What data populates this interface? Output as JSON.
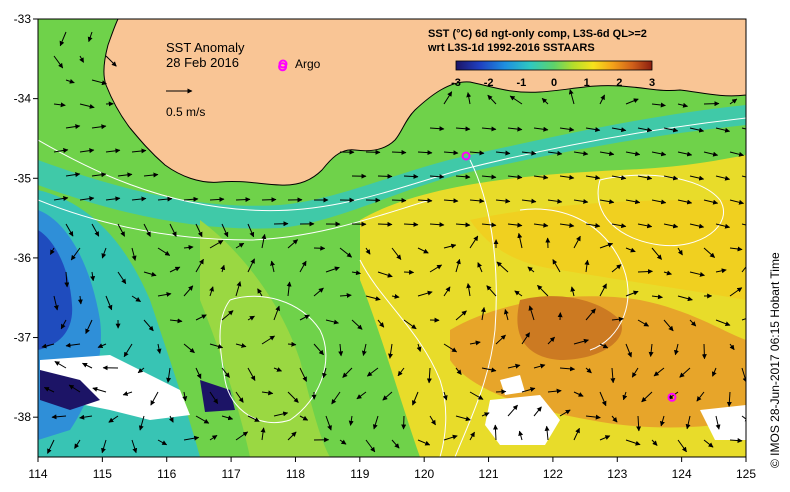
{
  "map": {
    "title": "SST Anomaly",
    "date": "28 Feb 2016",
    "argo_label": "Argo",
    "current_scale_label": "0.5 m/s",
    "credit": "© IMOS 28-Jun-2017 06:15 Hobart Time",
    "lon_ticks": [
      "114",
      "115",
      "116",
      "117",
      "118",
      "119",
      "120",
      "121",
      "122",
      "123",
      "124",
      "125"
    ],
    "lat_ticks": [
      "-33",
      "-34",
      "-35",
      "-36",
      "-37",
      "-38"
    ],
    "lon_range": [
      114,
      125
    ],
    "lat_range": [
      -38.5,
      -33
    ],
    "argo_floats": [
      {
        "lon": 117.8,
        "lat": -33.6
      },
      {
        "lon": 120.65,
        "lat": -34.72
      },
      {
        "lon": 123.85,
        "lat": -37.75
      }
    ]
  },
  "colorbar": {
    "title_line1": "SST (°C) 6d ngt-only comp, L3S-6d QL>=2",
    "title_line2": "wrt L3S-1d 1992-2016 SSTAARS",
    "ticks": [
      "-3",
      "-2",
      "-1",
      "0",
      "1",
      "2",
      "3"
    ],
    "range": [
      -3,
      3
    ]
  },
  "colors": {
    "land": "#f9c595",
    "argo_marker": "#ff00ff",
    "contour": "#ffffff",
    "frame": "#000000"
  }
}
